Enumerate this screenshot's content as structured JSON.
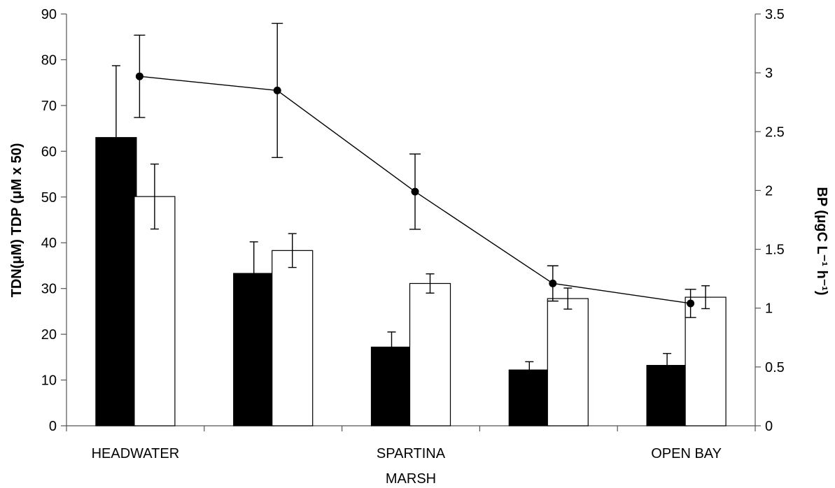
{
  "chart_data": {
    "type": "bar",
    "categories": [
      "HEADWATER",
      "",
      "SPARTINA\nMARSH",
      "",
      "OPEN BAY"
    ],
    "series": [
      {
        "kind": "bar",
        "axis": "left",
        "fill": "#000000",
        "values": [
          63,
          33.3,
          17.2,
          12.2,
          13.2
        ],
        "errors": [
          15.7,
          6.9,
          3.3,
          1.8,
          2.6
        ]
      },
      {
        "kind": "bar",
        "axis": "left",
        "fill": "#ffffff",
        "values": [
          50.1,
          38.3,
          31.1,
          27.8,
          28.1
        ],
        "errors": [
          7.1,
          3.7,
          2.1,
          2.3,
          2.5
        ]
      },
      {
        "kind": "line",
        "axis": "right",
        "color": "#000000",
        "values": [
          2.97,
          2.85,
          1.99,
          1.21,
          1.04
        ],
        "errors": [
          0.35,
          0.57,
          0.32,
          0.15,
          0.12
        ]
      }
    ],
    "ylabel": "TDN(μM) TDP (μM x 50)",
    "ylabel_right": "BP (μgC L⁻¹ h⁻¹)",
    "ylim": [
      0,
      90
    ],
    "yticks": [
      "0",
      "10",
      "20",
      "30",
      "40",
      "50",
      "60",
      "70",
      "80",
      "90"
    ],
    "ylim_right": [
      0,
      3.5
    ],
    "yticks_right": [
      "0",
      "0.5",
      "1",
      "1.5",
      "2",
      "2.5",
      "3",
      "3.5"
    ],
    "grid": false,
    "legend": "none"
  }
}
